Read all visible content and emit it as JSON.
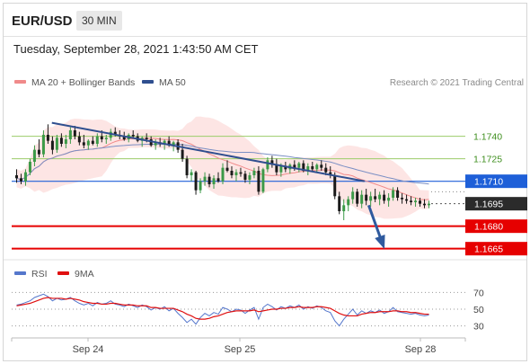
{
  "header": {
    "symbol": "EUR/USD",
    "interval": "30 MIN",
    "timestamp": "Tuesday, September 28, 2021 1:43:50 AM CET"
  },
  "legend": {
    "items": [
      {
        "label": "MA 20 + Bollinger Bands",
        "color": "#f08a8a"
      },
      {
        "label": "MA 50",
        "color": "#2f4f8f"
      }
    ],
    "credit": "Research © 2021 Trading Central"
  },
  "rsi_legend": {
    "items": [
      {
        "label": "RSI",
        "color": "#5577cc"
      },
      {
        "label": "9MA",
        "color": "#e01010"
      }
    ]
  },
  "colors": {
    "up": "#3c9a48",
    "down": "#1a1a1a",
    "pivot": "#e60000",
    "resistance_blue": "#1e5fd8",
    "trend": "#2f4f8f",
    "band": "#fde0df",
    "grid_green": "#9ccc6a"
  },
  "chart_data": [
    {
      "type": "candlestick",
      "x_labels": [
        "Sep 24",
        "Sep 25",
        "Sep 28"
      ],
      "ylim": [
        1.166,
        1.1765
      ],
      "levels": [
        {
          "value": 1.174,
          "label": "1.1740",
          "style": "grid"
        },
        {
          "value": 1.1725,
          "label": "1.1725",
          "style": "grid"
        },
        {
          "value": 1.171,
          "label": "1.1710",
          "style": "resistance"
        },
        {
          "value": 1.1695,
          "label": "1.1695",
          "style": "last"
        },
        {
          "value": 1.168,
          "label": "1.1680",
          "style": "support"
        },
        {
          "value": 1.1665,
          "label": "1.1665",
          "style": "support"
        }
      ],
      "trendline": [
        [
          0.09,
          1.1749
        ],
        [
          0.84,
          1.171
        ]
      ],
      "forecast_arrow": [
        [
          0.85,
          1.1694
        ],
        [
          0.885,
          1.1667
        ]
      ],
      "ohlc": [
        [
          1.1714,
          1.1718,
          1.1709,
          1.1712
        ],
        [
          1.1712,
          1.1715,
          1.1708,
          1.171
        ],
        [
          1.171,
          1.1718,
          1.1707,
          1.1716
        ],
        [
          1.1716,
          1.1725,
          1.1714,
          1.1723
        ],
        [
          1.1723,
          1.1734,
          1.172,
          1.1731
        ],
        [
          1.1731,
          1.1738,
          1.1726,
          1.1728
        ],
        [
          1.1728,
          1.1744,
          1.1726,
          1.1741
        ],
        [
          1.1741,
          1.1748,
          1.1735,
          1.1737
        ],
        [
          1.1737,
          1.174,
          1.1728,
          1.1731
        ],
        [
          1.1731,
          1.1741,
          1.1729,
          1.1739
        ],
        [
          1.1739,
          1.1742,
          1.1733,
          1.1735
        ],
        [
          1.1735,
          1.1741,
          1.1732,
          1.1738
        ],
        [
          1.1738,
          1.1746,
          1.1735,
          1.1744
        ],
        [
          1.1744,
          1.1747,
          1.1738,
          1.174
        ],
        [
          1.174,
          1.1743,
          1.1734,
          1.1736
        ],
        [
          1.1736,
          1.1741,
          1.1732,
          1.1734
        ],
        [
          1.1734,
          1.1738,
          1.1731,
          1.1737
        ],
        [
          1.1737,
          1.174,
          1.1734,
          1.1735
        ],
        [
          1.1735,
          1.1742,
          1.1733,
          1.174
        ],
        [
          1.174,
          1.1744,
          1.1736,
          1.1738
        ],
        [
          1.1738,
          1.1741,
          1.1735,
          1.1739
        ],
        [
          1.1739,
          1.1745,
          1.1737,
          1.1743
        ],
        [
          1.1743,
          1.1746,
          1.174,
          1.1741
        ],
        [
          1.1741,
          1.1744,
          1.1738,
          1.174
        ],
        [
          1.174,
          1.1743,
          1.1737,
          1.1738
        ],
        [
          1.1738,
          1.1742,
          1.1736,
          1.1741
        ],
        [
          1.1741,
          1.1744,
          1.1739,
          1.174
        ],
        [
          1.174,
          1.1742,
          1.1736,
          1.1737
        ],
        [
          1.1737,
          1.174,
          1.1733,
          1.1739
        ],
        [
          1.1739,
          1.1742,
          1.1736,
          1.1738
        ],
        [
          1.1738,
          1.174,
          1.1733,
          1.1734
        ],
        [
          1.1734,
          1.1738,
          1.1731,
          1.1736
        ],
        [
          1.1736,
          1.1739,
          1.1733,
          1.1735
        ],
        [
          1.1735,
          1.1738,
          1.1731,
          1.1737
        ],
        [
          1.1737,
          1.174,
          1.1733,
          1.1734
        ],
        [
          1.1734,
          1.1737,
          1.173,
          1.1736
        ],
        [
          1.1736,
          1.1738,
          1.1729,
          1.1731
        ],
        [
          1.1731,
          1.1735,
          1.1723,
          1.1725
        ],
        [
          1.1725,
          1.1727,
          1.1712,
          1.1714
        ],
        [
          1.1714,
          1.1718,
          1.171,
          1.1716
        ],
        [
          1.1716,
          1.1717,
          1.1701,
          1.1704
        ],
        [
          1.1704,
          1.1712,
          1.1702,
          1.171
        ],
        [
          1.171,
          1.1716,
          1.1707,
          1.1713
        ],
        [
          1.1713,
          1.1715,
          1.1706,
          1.1708
        ],
        [
          1.1708,
          1.1714,
          1.1705,
          1.1712
        ],
        [
          1.1712,
          1.1716,
          1.1709,
          1.171
        ],
        [
          1.171,
          1.1722,
          1.1708,
          1.1719
        ],
        [
          1.1719,
          1.1724,
          1.1716,
          1.1717
        ],
        [
          1.1717,
          1.172,
          1.1712,
          1.1714
        ],
        [
          1.1714,
          1.1718,
          1.171,
          1.1716
        ],
        [
          1.1716,
          1.1719,
          1.1713,
          1.1715
        ],
        [
          1.1715,
          1.1717,
          1.1709,
          1.1711
        ],
        [
          1.1711,
          1.1716,
          1.1708,
          1.1714
        ],
        [
          1.1714,
          1.1719,
          1.1712,
          1.1717
        ],
        [
          1.1717,
          1.172,
          1.1701,
          1.1703
        ],
        [
          1.1703,
          1.1719,
          1.1702,
          1.1718
        ],
        [
          1.1718,
          1.1726,
          1.1716,
          1.1724
        ],
        [
          1.1724,
          1.1727,
          1.1719,
          1.1721
        ],
        [
          1.1721,
          1.1725,
          1.1714,
          1.1716
        ],
        [
          1.1716,
          1.1722,
          1.1713,
          1.172
        ],
        [
          1.172,
          1.1723,
          1.1716,
          1.1718
        ],
        [
          1.1718,
          1.1722,
          1.1715,
          1.1721
        ],
        [
          1.1721,
          1.1724,
          1.1717,
          1.1719
        ],
        [
          1.1719,
          1.1723,
          1.1716,
          1.1722
        ],
        [
          1.1722,
          1.1724,
          1.1716,
          1.1717
        ],
        [
          1.1717,
          1.1722,
          1.1714,
          1.172
        ],
        [
          1.172,
          1.1723,
          1.1717,
          1.1718
        ],
        [
          1.1718,
          1.1722,
          1.1716,
          1.1721
        ],
        [
          1.1721,
          1.1724,
          1.1717,
          1.1719
        ],
        [
          1.1719,
          1.1722,
          1.1714,
          1.1716
        ],
        [
          1.1716,
          1.172,
          1.1712,
          1.1714
        ],
        [
          1.1714,
          1.1716,
          1.1698,
          1.17
        ],
        [
          1.17,
          1.1703,
          1.1688,
          1.169
        ],
        [
          1.169,
          1.1698,
          1.1684,
          1.1694
        ],
        [
          1.1694,
          1.17,
          1.169,
          1.1698
        ],
        [
          1.1698,
          1.1706,
          1.1695,
          1.1703
        ],
        [
          1.1703,
          1.1705,
          1.1693,
          1.1695
        ],
        [
          1.1695,
          1.1704,
          1.1692,
          1.1701
        ],
        [
          1.1701,
          1.1705,
          1.1694,
          1.1697
        ],
        [
          1.1697,
          1.1703,
          1.1693,
          1.17
        ],
        [
          1.17,
          1.1705,
          1.1696,
          1.1698
        ],
        [
          1.1698,
          1.1703,
          1.1694,
          1.1701
        ],
        [
          1.1701,
          1.1704,
          1.1695,
          1.1697
        ],
        [
          1.1697,
          1.1702,
          1.1693,
          1.1699
        ],
        [
          1.1699,
          1.1706,
          1.1697,
          1.1704
        ],
        [
          1.1704,
          1.1706,
          1.1697,
          1.1699
        ],
        [
          1.1699,
          1.1702,
          1.1695,
          1.1698
        ],
        [
          1.1698,
          1.1701,
          1.1695,
          1.1697
        ],
        [
          1.1697,
          1.17,
          1.1694,
          1.1696
        ],
        [
          1.1696,
          1.1699,
          1.1693,
          1.1697
        ],
        [
          1.1697,
          1.1699,
          1.1693,
          1.1695
        ],
        [
          1.1695,
          1.1698,
          1.1692,
          1.1694
        ],
        [
          1.1694,
          1.1697,
          1.1692,
          1.1695
        ]
      ],
      "rsi": {
        "ylim": [
          22,
          78
        ],
        "levels": [
          {
            "value": 70,
            "label": "70"
          },
          {
            "value": 50,
            "label": "50"
          },
          {
            "value": 30,
            "label": "30"
          }
        ],
        "rsi_values": [
          55,
          56,
          58,
          60,
          64,
          66,
          68,
          65,
          60,
          63,
          61,
          62,
          64,
          60,
          57,
          55,
          57,
          54,
          58,
          56,
          57,
          60,
          56,
          55,
          53,
          56,
          54,
          52,
          55,
          53,
          49,
          52,
          50,
          53,
          48,
          51,
          45,
          40,
          34,
          38,
          32,
          40,
          45,
          42,
          46,
          44,
          52,
          50,
          47,
          50,
          49,
          45,
          49,
          52,
          38,
          52,
          56,
          53,
          49,
          53,
          51,
          54,
          52,
          55,
          50,
          53,
          51,
          54,
          52,
          48,
          46,
          36,
          30,
          38,
          44,
          50,
          43,
          48,
          45,
          48,
          46,
          49,
          45,
          47,
          52,
          47,
          46,
          45,
          44,
          45,
          43,
          42,
          43
        ],
        "ma_values": [
          54,
          55,
          56,
          57,
          59,
          61,
          63,
          64,
          63,
          63,
          63,
          62,
          63,
          62,
          61,
          59,
          58,
          57,
          57,
          56,
          56,
          57,
          57,
          56,
          55,
          55,
          55,
          54,
          54,
          54,
          52,
          52,
          51,
          51,
          51,
          51,
          49,
          47,
          44,
          42,
          39,
          38,
          38,
          39,
          41,
          42,
          44,
          46,
          47,
          48,
          48,
          48,
          48,
          49,
          47,
          48,
          49,
          50,
          50,
          51,
          51,
          52,
          52,
          53,
          52,
          52,
          52,
          53,
          53,
          52,
          51,
          48,
          45,
          43,
          42,
          42,
          42,
          44,
          45,
          46,
          46,
          47,
          47,
          47,
          48,
          48,
          47,
          47,
          46,
          46,
          45,
          44,
          44
        ]
      }
    }
  ]
}
